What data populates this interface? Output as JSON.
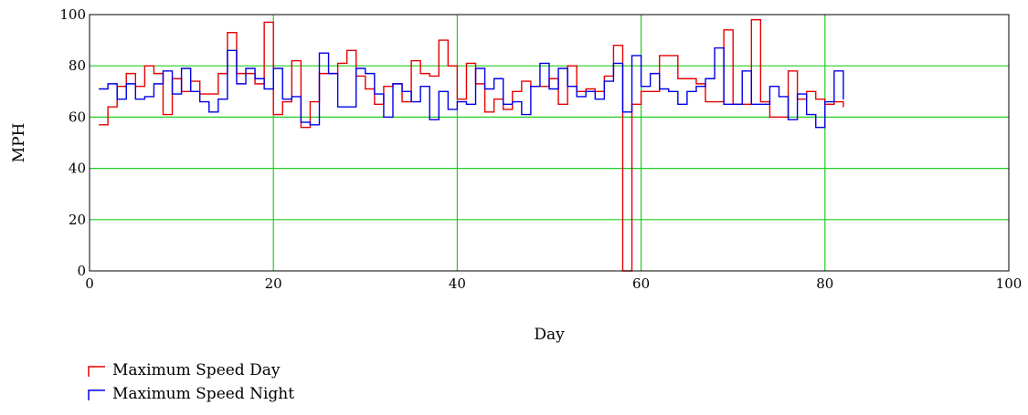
{
  "chart_data": {
    "type": "line",
    "step": true,
    "xlabel": "Day",
    "ylabel": "MPH",
    "xlim": [
      0,
      100
    ],
    "ylim": [
      0,
      100
    ],
    "xticks": [
      0,
      20,
      40,
      60,
      80,
      100
    ],
    "yticks": [
      0,
      20,
      40,
      60,
      80,
      100
    ],
    "grid": true,
    "grid_color": "#22cc22",
    "legend_position": "bottom-left",
    "x": [
      1,
      2,
      3,
      4,
      5,
      6,
      7,
      8,
      9,
      10,
      11,
      12,
      13,
      14,
      15,
      16,
      17,
      18,
      19,
      20,
      21,
      22,
      23,
      24,
      25,
      26,
      27,
      28,
      29,
      30,
      31,
      32,
      33,
      34,
      35,
      36,
      37,
      38,
      39,
      40,
      41,
      42,
      43,
      44,
      45,
      46,
      47,
      48,
      49,
      50,
      51,
      52,
      53,
      54,
      55,
      56,
      57,
      58,
      59,
      60,
      61,
      62,
      63,
      64,
      65,
      66,
      67,
      68,
      69,
      70,
      71,
      72,
      73,
      74,
      75,
      76,
      77,
      78,
      79,
      80,
      81,
      82
    ],
    "series": [
      {
        "name": "Maximum Speed Day",
        "color": "#e60000",
        "values": [
          57,
          64,
          72,
          77,
          72,
          80,
          77,
          61,
          75,
          70,
          74,
          69,
          69,
          77,
          93,
          77,
          77,
          73,
          97,
          61,
          66,
          82,
          56,
          66,
          77,
          77,
          81,
          86,
          76,
          71,
          65,
          72,
          73,
          66,
          82,
          77,
          76,
          90,
          80,
          67,
          81,
          73,
          62,
          67,
          63,
          70,
          74,
          72,
          72,
          75,
          65,
          80,
          70,
          71,
          70,
          76,
          88,
          0,
          65,
          70,
          70,
          84,
          84,
          75,
          75,
          73,
          66,
          66,
          94,
          65,
          65,
          98,
          66,
          60,
          60,
          78,
          67,
          70,
          67,
          65,
          66,
          64
        ]
      },
      {
        "name": "Maximum Speed Night",
        "color": "#0000e6",
        "values": [
          71,
          73,
          67,
          73,
          67,
          68,
          73,
          78,
          69,
          79,
          70,
          66,
          62,
          67,
          86,
          73,
          79,
          75,
          71,
          79,
          67,
          68,
          58,
          57,
          85,
          77,
          64,
          64,
          79,
          77,
          69,
          60,
          73,
          70,
          66,
          72,
          59,
          70,
          63,
          66,
          65,
          79,
          71,
          75,
          65,
          66,
          61,
          72,
          81,
          71,
          79,
          72,
          68,
          70,
          67,
          74,
          81,
          62,
          84,
          72,
          77,
          71,
          70,
          65,
          70,
          72,
          75,
          87,
          65,
          65,
          78,
          65,
          65,
          72,
          68,
          59,
          69,
          61,
          56,
          66,
          78,
          67
        ]
      }
    ]
  }
}
